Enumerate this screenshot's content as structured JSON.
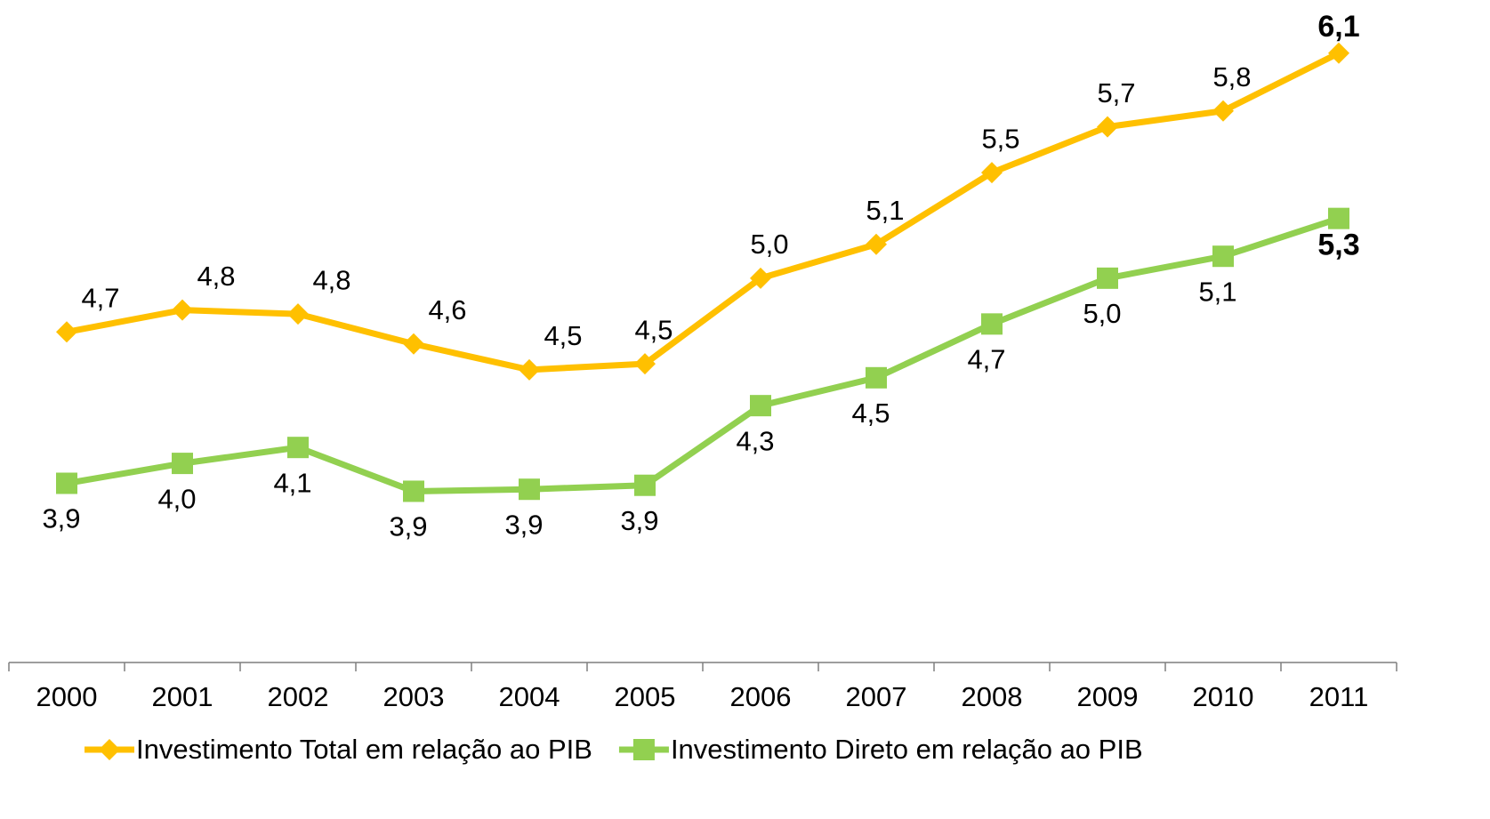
{
  "chart_data": {
    "type": "line",
    "categories": [
      "2000",
      "2001",
      "2002",
      "2003",
      "2004",
      "2005",
      "2006",
      "2007",
      "2008",
      "2009",
      "2010",
      "2011"
    ],
    "series": [
      {
        "name": "Investimento Total em relação ao PIB",
        "color": "#FFC000",
        "marker": "diamond",
        "values": [
          4.7,
          4.81,
          4.79,
          4.64,
          4.51,
          4.54,
          4.97,
          5.14,
          5.5,
          5.73,
          5.81,
          6.1
        ],
        "value_labels": [
          "4,7",
          "4,8",
          "4,8",
          "4,6",
          "4,5",
          "4,5",
          "5,0",
          "5,1",
          "5,5",
          "5,7",
          "5,8",
          "6,1"
        ]
      },
      {
        "name": "Investimento Direto em relação ao PIB",
        "color": "#92D050",
        "marker": "square",
        "values": [
          3.94,
          4.04,
          4.12,
          3.9,
          3.91,
          3.93,
          4.33,
          4.47,
          4.74,
          4.97,
          5.08,
          5.27
        ],
        "value_labels": [
          "3,9",
          "4,0",
          "4,1",
          "3,9",
          "3,9",
          "3,9",
          "4,3",
          "4,5",
          "4,7",
          "5,0",
          "5,1",
          "5,3"
        ]
      }
    ],
    "ylim": [
      3.0,
      6.3
    ],
    "legend": "bottom"
  }
}
